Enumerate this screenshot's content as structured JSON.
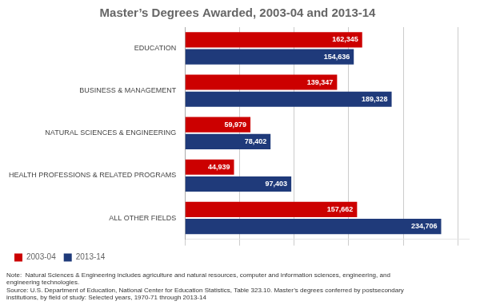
{
  "chart_data": {
    "type": "bar",
    "orientation": "horizontal",
    "title": "Master’s Degrees Awarded, 2003-04 and 2013-14",
    "categories": [
      "EDUCATION",
      "BUSINESS & MANAGEMENT",
      "NATURAL SCIENCES & ENGINEERING",
      "HEALTH PROFESSIONS & RELATED PROGRAMS",
      "ALL OTHER FIELDS"
    ],
    "series": [
      {
        "name": "2003-04",
        "color": "#CC0000",
        "values": [
          162345,
          139347,
          59979,
          44939,
          157662
        ],
        "value_labels": [
          "162,345",
          "139,347",
          "59,979",
          "44,939",
          "157,662"
        ]
      },
      {
        "name": "2013-14",
        "color": "#1F3A7A",
        "values": [
          154636,
          189328,
          78402,
          97403,
          234706
        ],
        "value_labels": [
          "154,636",
          "189,328",
          "78,402",
          "97,403",
          "234,706"
        ]
      }
    ],
    "xlim": [
      0,
      260000
    ],
    "xticks": [
      0,
      50000,
      100000,
      150000,
      200000,
      250000
    ],
    "grid": true,
    "tick_labels": "y",
    "data_labels": true,
    "legend": "lower left",
    "annotations": [
      "Note:  Natural Sciences & Engineering includes agriculture and natural resources, computer and information sciences, engineering, and\nengineering technologies.\nSource: U.S. Department of Education, National Center for Education Statistics, Table 323.10. Master’s degrees conferred by postsecondary\ninstitutions, by field of study: Selected years, 1970-71 through 2013-14"
    ]
  }
}
